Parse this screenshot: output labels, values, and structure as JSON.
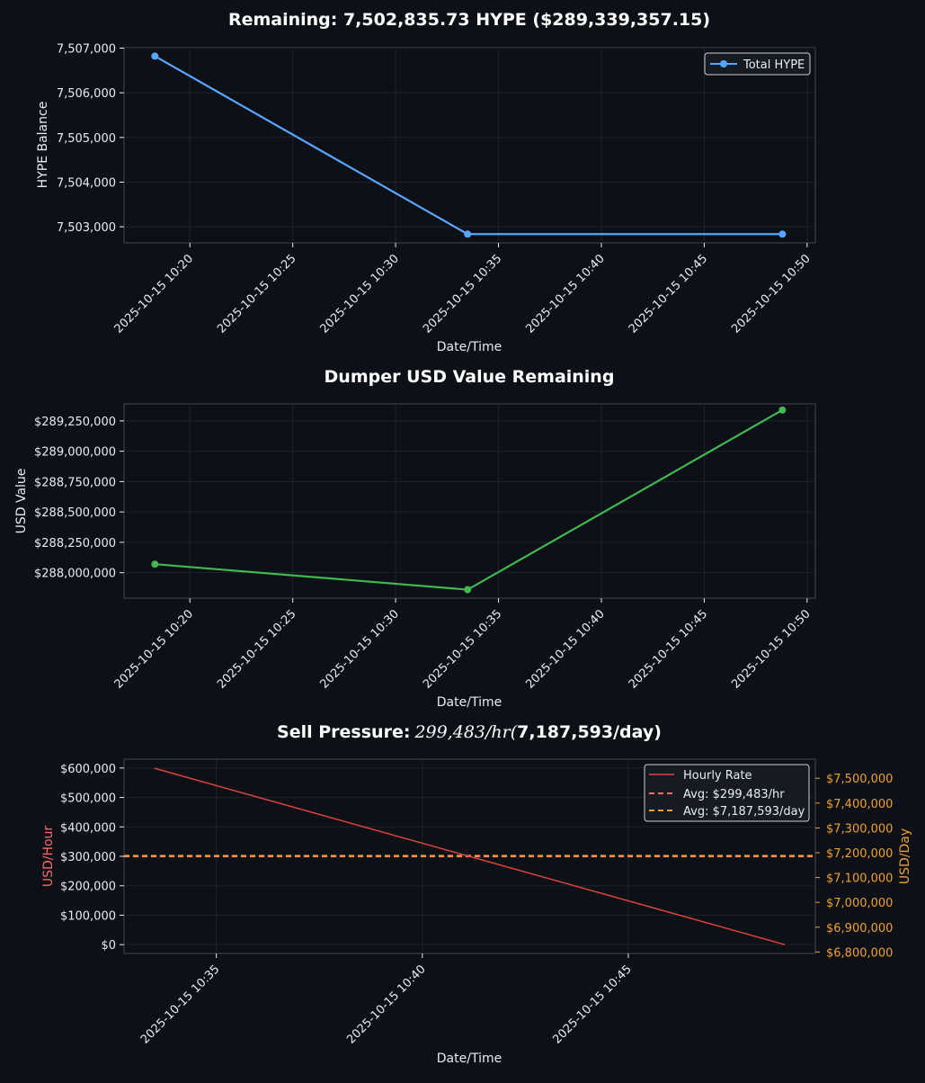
{
  "colors": {
    "background": "#0d1117",
    "axes_face": "#0d1017",
    "spine": "#3a3f47",
    "grid": "#1e232b",
    "text": "#e6edf3",
    "blue": "#58a6ff",
    "green": "#3fb950",
    "red": "#e0443e",
    "red_label": "#ff6b6b",
    "orange": "#f0a030"
  },
  "chart_data": [
    {
      "type": "line",
      "title": "Remaining: 7,502,835.73 HYPE ($289,339,357.15)",
      "xlabel": "Date/Time",
      "ylabel": "HYPE Balance",
      "x_minutes": [
        18.3,
        33.5,
        48.8
      ],
      "x_tick_minutes": [
        20,
        25,
        30,
        35,
        40,
        45,
        50
      ],
      "x_tick_labels": [
        "2025-10-15 10:20",
        "2025-10-15 10:25",
        "2025-10-15 10:30",
        "2025-10-15 10:35",
        "2025-10-15 10:40",
        "2025-10-15 10:45",
        "2025-10-15 10:50"
      ],
      "xlim": [
        16.8,
        50.4
      ],
      "ylim": [
        7502640,
        7507010
      ],
      "y_ticks": [
        7503000,
        7504000,
        7505000,
        7506000,
        7507000
      ],
      "y_tick_labels": [
        "7,503,000",
        "7,504,000",
        "7,505,000",
        "7,506,000",
        "7,507,000"
      ],
      "series": [
        {
          "name": "Total HYPE",
          "values": [
            7506820,
            7502835.73,
            7502835.73
          ],
          "color": "#58a6ff"
        }
      ],
      "legend": {
        "position": "top-right",
        "entries": [
          "Total HYPE"
        ]
      }
    },
    {
      "type": "line",
      "title": "Dumper USD Value Remaining",
      "xlabel": "Date/Time",
      "ylabel": "USD Value",
      "x_minutes": [
        18.3,
        33.5,
        48.8
      ],
      "x_tick_minutes": [
        20,
        25,
        30,
        35,
        40,
        45,
        50
      ],
      "x_tick_labels": [
        "2025-10-15 10:20",
        "2025-10-15 10:25",
        "2025-10-15 10:30",
        "2025-10-15 10:35",
        "2025-10-15 10:40",
        "2025-10-15 10:45",
        "2025-10-15 10:50"
      ],
      "xlim": [
        16.8,
        50.4
      ],
      "ylim": [
        287790000,
        289390000
      ],
      "y_ticks": [
        288000000,
        288250000,
        288500000,
        288750000,
        289000000,
        289250000
      ],
      "y_tick_labels": [
        "$288,000,000",
        "$288,250,000",
        "$288,500,000",
        "$288,750,000",
        "$289,000,000",
        "$289,250,000"
      ],
      "series": [
        {
          "name": "USD Value",
          "values": [
            288070000,
            287860000,
            289339357.15
          ],
          "color": "#3fb950"
        }
      ]
    },
    {
      "type": "line",
      "title_bold": "Sell Pressure:",
      "title_math": "299,483/hr(",
      "title_bold_end": "7,187,593/day)",
      "xlabel": "Date/Time",
      "ylabel_left": "USD/Hour",
      "ylabel_right": "USD/Day",
      "x_minutes": [
        33.5,
        48.8
      ],
      "x_tick_minutes": [
        35,
        40,
        45
      ],
      "x_tick_labels": [
        "2025-10-15 10:35",
        "2025-10-15 10:40",
        "2025-10-15 10:45"
      ],
      "xlim": [
        32.76,
        49.54
      ],
      "ylim": [
        -30000,
        630000
      ],
      "y_ticks": [
        0,
        100000,
        200000,
        300000,
        400000,
        500000,
        600000
      ],
      "y_tick_labels": [
        "$0",
        "$100,000",
        "$200,000",
        "$300,000",
        "$400,000",
        "$500,000",
        "$600,000"
      ],
      "y2lim": [
        6794000,
        7577000
      ],
      "y2_ticks": [
        6800000,
        6900000,
        7000000,
        7100000,
        7200000,
        7300000,
        7400000,
        7500000
      ],
      "y2_tick_labels": [
        "$6,800,000",
        "$6,900,000",
        "$7,000,000",
        "$7,100,000",
        "$7,200,000",
        "$7,300,000",
        "$7,400,000",
        "$7,500,000"
      ],
      "series": [
        {
          "name": "Hourly Rate",
          "values": [
            598966,
            0
          ],
          "color": "#e0443e"
        }
      ],
      "avg_hourly": 299483,
      "avg_daily": 7187593,
      "legend": {
        "position": "top-right",
        "entries": [
          "Hourly Rate",
          "Avg: $299,483/hr",
          "Avg: $7,187,593/day"
        ]
      }
    }
  ]
}
